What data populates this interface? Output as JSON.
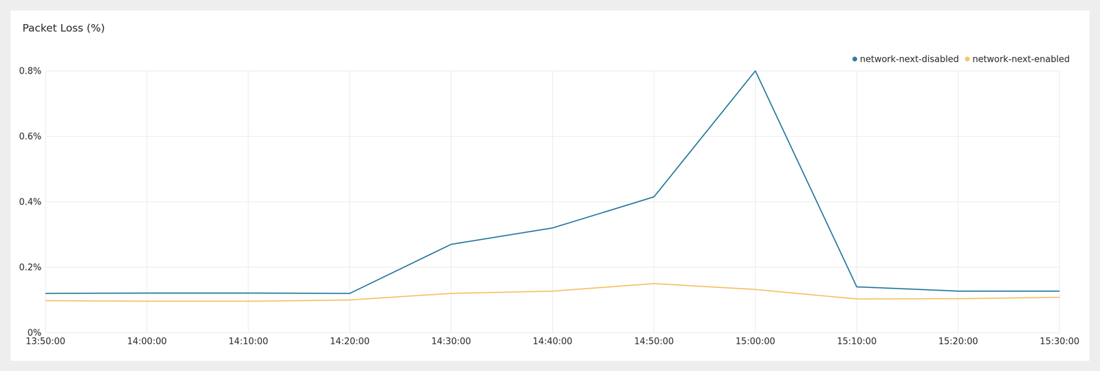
{
  "chart_data": {
    "type": "line",
    "title": "Packet Loss (%)",
    "categories": [
      "13:50:00",
      "14:00:00",
      "14:10:00",
      "14:20:00",
      "14:30:00",
      "14:40:00",
      "14:50:00",
      "15:00:00",
      "15:10:00",
      "15:20:00",
      "15:30:00"
    ],
    "series": [
      {
        "name": "network-next-disabled",
        "color": "#2e7fa0",
        "values": [
          0.12,
          0.121,
          0.121,
          0.12,
          0.27,
          0.32,
          0.415,
          0.8,
          0.14,
          0.127,
          0.127
        ]
      },
      {
        "name": "network-next-enabled",
        "color": "#f5c56a",
        "values": [
          0.098,
          0.096,
          0.096,
          0.1,
          0.12,
          0.127,
          0.15,
          0.132,
          0.103,
          0.104,
          0.108
        ]
      }
    ],
    "ylim": [
      0,
      0.8
    ],
    "yticks": [
      {
        "value": 0,
        "label": "0%"
      },
      {
        "value": 0.2,
        "label": "0.2%"
      },
      {
        "value": 0.4,
        "label": "0.4%"
      },
      {
        "value": 0.6,
        "label": "0.6%"
      },
      {
        "value": 0.8,
        "label": "0.8%"
      }
    ],
    "grid": true,
    "legend": "top-right"
  }
}
